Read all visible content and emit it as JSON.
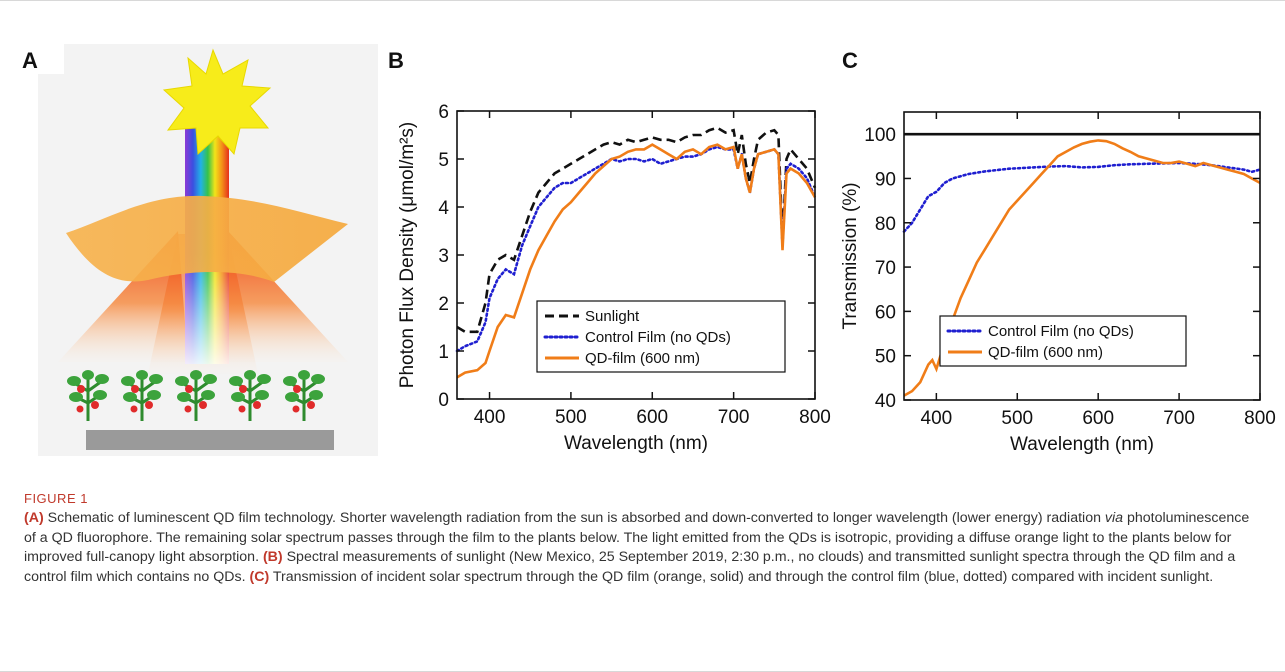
{
  "panels": {
    "a": "A",
    "b": "B",
    "c": "C"
  },
  "colors": {
    "sunlight": "#111111",
    "control": "#1f1fd0",
    "qd": "#f07d18",
    "caption_accent": "#c0392b",
    "film": "#f6b24e",
    "sun": "#f7ec1a"
  },
  "icons": {
    "sun": "sun-icon",
    "film": "qd-film-icon",
    "plant": "tomato-plant-icon",
    "tray": "planter-tray-icon"
  },
  "chart_data": [
    {
      "type": "line",
      "panel": "B",
      "xlabel": "Wavelength (nm)",
      "ylabel": "Photon Flux Density (μmol/m²s)",
      "xlim": [
        360,
        800
      ],
      "ylim": [
        0,
        6
      ],
      "xticks": [
        "400",
        "500",
        "600",
        "700",
        "800"
      ],
      "yticks": [
        "0",
        "1",
        "2",
        "3",
        "4",
        "5",
        "6"
      ],
      "grid": false,
      "legend": "bottom-right",
      "series": [
        {
          "name": "Sunlight",
          "style": "dashed",
          "color": "#111111",
          "x": [
            360,
            370,
            385,
            395,
            400,
            410,
            420,
            430,
            440,
            450,
            460,
            470,
            480,
            490,
            500,
            510,
            520,
            530,
            540,
            550,
            560,
            570,
            580,
            590,
            600,
            610,
            620,
            630,
            640,
            650,
            660,
            670,
            680,
            690,
            700,
            705,
            710,
            715,
            720,
            725,
            730,
            740,
            750,
            755,
            760,
            765,
            770,
            780,
            790,
            800
          ],
          "y": [
            1.5,
            1.4,
            1.4,
            2.0,
            2.6,
            2.9,
            3.0,
            2.9,
            3.4,
            3.9,
            4.3,
            4.5,
            4.7,
            4.8,
            4.9,
            5.0,
            5.1,
            5.2,
            5.3,
            5.35,
            5.3,
            5.4,
            5.35,
            5.4,
            5.45,
            5.4,
            5.4,
            5.35,
            5.45,
            5.5,
            5.5,
            5.6,
            5.65,
            5.55,
            5.6,
            5.1,
            5.5,
            4.9,
            4.5,
            5.0,
            5.4,
            5.55,
            5.6,
            5.5,
            3.3,
            5.0,
            5.2,
            5.0,
            4.8,
            4.4
          ]
        },
        {
          "name": "Control Film (no QDs)",
          "style": "dotted",
          "color": "#1f1fd0",
          "x": [
            360,
            370,
            385,
            395,
            400,
            410,
            420,
            430,
            440,
            450,
            460,
            470,
            480,
            490,
            500,
            510,
            520,
            530,
            540,
            550,
            560,
            570,
            580,
            590,
            600,
            610,
            620,
            630,
            640,
            650,
            660,
            670,
            680,
            690,
            700,
            705,
            710,
            715,
            720,
            725,
            730,
            740,
            750,
            755,
            760,
            765,
            770,
            780,
            790,
            800
          ],
          "y": [
            1.0,
            1.1,
            1.2,
            1.6,
            2.1,
            2.5,
            2.7,
            2.6,
            3.2,
            3.6,
            4.0,
            4.2,
            4.4,
            4.5,
            4.5,
            4.6,
            4.7,
            4.8,
            4.9,
            5.0,
            4.95,
            5.0,
            5.0,
            4.95,
            5.0,
            4.9,
            4.95,
            5.0,
            5.05,
            5.05,
            5.1,
            5.2,
            5.25,
            5.2,
            5.2,
            4.8,
            5.1,
            4.6,
            4.3,
            4.8,
            5.1,
            5.15,
            5.2,
            5.1,
            3.2,
            4.8,
            4.9,
            4.8,
            4.6,
            4.2
          ]
        },
        {
          "name": "QD-film (600 nm)",
          "style": "solid",
          "color": "#f07d18",
          "x": [
            360,
            370,
            385,
            395,
            400,
            410,
            420,
            430,
            440,
            450,
            460,
            470,
            480,
            490,
            500,
            510,
            520,
            530,
            540,
            550,
            560,
            570,
            580,
            590,
            600,
            610,
            620,
            630,
            640,
            650,
            660,
            670,
            680,
            690,
            700,
            705,
            710,
            715,
            720,
            725,
            730,
            740,
            750,
            755,
            760,
            765,
            770,
            780,
            790,
            800
          ],
          "y": [
            0.45,
            0.55,
            0.6,
            0.75,
            1.0,
            1.5,
            1.75,
            1.7,
            2.2,
            2.7,
            3.1,
            3.4,
            3.7,
            3.95,
            4.1,
            4.3,
            4.5,
            4.7,
            4.85,
            5.0,
            5.05,
            5.15,
            5.2,
            5.2,
            5.3,
            5.2,
            5.1,
            5.0,
            5.15,
            5.2,
            5.1,
            5.25,
            5.3,
            5.2,
            5.25,
            4.8,
            5.1,
            4.6,
            4.3,
            4.8,
            5.1,
            5.15,
            5.2,
            5.1,
            3.1,
            4.7,
            4.8,
            4.7,
            4.5,
            4.2
          ]
        }
      ]
    },
    {
      "type": "line",
      "panel": "C",
      "xlabel": "Wavelength (nm)",
      "ylabel": "Transmission (%)",
      "xlim": [
        360,
        800
      ],
      "ylim": [
        40,
        105
      ],
      "xticks": [
        "400",
        "500",
        "600",
        "700",
        "800"
      ],
      "yticks": [
        "40",
        "50",
        "60",
        "70",
        "80",
        "90",
        "100"
      ],
      "grid": false,
      "legend": "bottom-right",
      "series": [
        {
          "style": "solid",
          "color": "#111111",
          "x": [
            360,
            800
          ],
          "y": [
            100,
            100
          ]
        },
        {
          "name": "Control Film (no QDs)",
          "style": "dotted",
          "color": "#1f1fd0",
          "x": [
            360,
            370,
            380,
            390,
            400,
            410,
            420,
            430,
            440,
            450,
            460,
            470,
            480,
            490,
            500,
            520,
            540,
            560,
            580,
            600,
            620,
            640,
            660,
            680,
            700,
            720,
            740,
            760,
            780,
            790,
            800
          ],
          "y": [
            78,
            80,
            83,
            86,
            87,
            89,
            90,
            90.5,
            91,
            91.3,
            91.6,
            91.8,
            92,
            92.2,
            92.3,
            92.5,
            92.7,
            92.8,
            92.5,
            92.6,
            93,
            93.2,
            93.3,
            93.4,
            93.5,
            93.3,
            93,
            92.5,
            92,
            91.5,
            92
          ]
        },
        {
          "name": "QD-film (600 nm)",
          "style": "solid",
          "color": "#f07d18",
          "x": [
            360,
            370,
            380,
            390,
            395,
            400,
            410,
            420,
            430,
            440,
            450,
            460,
            470,
            480,
            490,
            500,
            510,
            520,
            530,
            540,
            550,
            560,
            570,
            580,
            590,
            600,
            610,
            620,
            630,
            640,
            650,
            660,
            670,
            680,
            690,
            700,
            710,
            720,
            730,
            740,
            750,
            760,
            770,
            780,
            790,
            800
          ],
          "y": [
            41,
            42,
            44,
            48,
            49,
            47,
            53,
            58,
            63,
            67,
            71,
            74,
            77,
            80,
            83,
            85,
            87,
            89,
            91,
            93,
            95,
            96,
            97,
            97.8,
            98.3,
            98.6,
            98.4,
            97.8,
            96.8,
            96,
            95,
            94.5,
            94,
            93.5,
            93.5,
            93.8,
            93.3,
            92.8,
            93.5,
            93,
            92.5,
            92,
            91.5,
            91,
            90,
            89
          ]
        }
      ]
    }
  ],
  "caption": {
    "label": "FIGURE 1",
    "a_tag": "(A)",
    "a_text": " Schematic of luminescent QD film technology. Shorter wavelength radiation from the sun is absorbed and down-converted to longer wavelength (lower energy) radiation ",
    "a_italic": "via",
    "a_text2": " photoluminescence of a QD fluorophore. The remaining solar spectrum passes through the film to the plants below. The light emitted from the QDs is isotropic, providing a diffuse orange light to the plants below for improved full-canopy light absorption. ",
    "b_tag": "(B)",
    "b_text": " Spectral measurements of sunlight (New Mexico, 25 September 2019, 2:30 p.m., no clouds) and transmitted sunlight spectra through the QD film and a control film which contains no QDs. ",
    "c_tag": "(C)",
    "c_text": " Transmission of incident solar spectrum through the QD film (orange, solid) and through the control film (blue, dotted) compared with incident sunlight."
  }
}
